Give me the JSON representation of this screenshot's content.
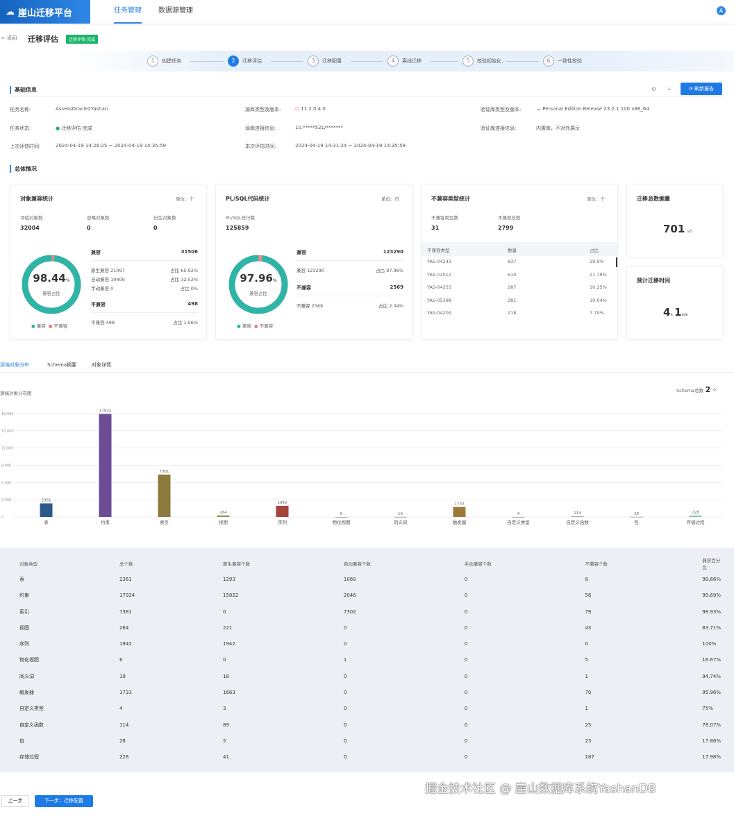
{
  "app": {
    "title": "崖山迁移平台",
    "nav": [
      "任务管理",
      "数据源管理"
    ],
    "avatar": "A"
  },
  "header": {
    "back": "返回",
    "title": "迁移评估",
    "badge": "迁移评估-完成"
  },
  "steps": [
    {
      "n": "1",
      "label": "创建任务"
    },
    {
      "n": "2",
      "label": "迁移评估"
    },
    {
      "n": "3",
      "label": "迁移配置"
    },
    {
      "n": "4",
      "label": "离线迁移"
    },
    {
      "n": "5",
      "label": "校验初始化"
    },
    {
      "n": "6",
      "label": "一致性校验"
    }
  ],
  "basic": {
    "title": "基础信息",
    "refresh": "刷新报告",
    "fields": [
      {
        "label": "任务名称:",
        "value": "AssessOracle2Yashan"
      },
      {
        "label": "源库类型及版本:",
        "value": "11.2.0.4.0"
      },
      {
        "label": "验证库类型及版本:",
        "value": "Personal Edition Release 23.2.1.100 x86_64"
      },
      {
        "label": "任务状态:",
        "value": "迁移评估-完成"
      },
      {
        "label": "源库连接信息:",
        "value": "10.*****521/*******"
      },
      {
        "label": "验证库连接信息:",
        "value": "内置库，不对外展示"
      },
      {
        "label": "上次评估时间:",
        "value": "2024-04-19 14:26:25 ~ 2024-04-19 14:35:59"
      },
      {
        "label": "本次评估时间:",
        "value": "2024-04-19 14:31:34 ~ 2024-04-19 14:35:59"
      }
    ]
  },
  "overview": {
    "title": "总体情况",
    "obj": {
      "title": "对象兼容统计",
      "unit": "单位：个",
      "stats": [
        {
          "l": "评估对象数",
          "v": "32004"
        },
        {
          "l": "忽略对象数",
          "v": "0"
        },
        {
          "l": "衍生对象数",
          "v": "0"
        }
      ],
      "pct": "98.44",
      "pct_unit": "%",
      "pct_label": "兼容占比",
      "compat_fraction": 0.9844,
      "compat": {
        "l": "兼容",
        "v": "31506"
      },
      "rows": [
        {
          "l": "原生兼容 21097",
          "p": "占比 65.92%"
        },
        {
          "l": "自动兼容 10409",
          "p": "占比 32.52%"
        },
        {
          "l": "手动兼容 0",
          "p": "占比 0%"
        }
      ],
      "incompat": {
        "l": "不兼容",
        "v": "498"
      },
      "irows": [
        {
          "l": "不兼容 498",
          "p": "占比 1.56%"
        }
      ],
      "legend": [
        "兼容",
        "不兼容"
      ]
    },
    "plsql": {
      "title": "PL/SQL代码统计",
      "unit": "单位：行",
      "stat": {
        "l": "PL/SQL总行数",
        "v": "125859"
      },
      "pct": "97.96",
      "pct_unit": "%",
      "pct_label": "兼容占比",
      "compat_fraction": 0.9796,
      "compat": {
        "l": "兼容",
        "v": "123290"
      },
      "rows": [
        {
          "l": "兼容 123290",
          "p": "占比 97.96%"
        }
      ],
      "incompat": {
        "l": "不兼容",
        "v": "2569"
      },
      "irows": [
        {
          "l": "不兼容 2569",
          "p": "占比 2.04%"
        }
      ],
      "legend": [
        "兼容",
        "不兼容"
      ]
    },
    "incompat": {
      "title": "不兼容类型统计",
      "unit": "单位：个",
      "stats": [
        {
          "l": "不兼容类型数",
          "v": "31"
        },
        {
          "l": "不兼容总数",
          "v": "2799"
        }
      ],
      "headers": [
        "不兼容类型",
        "数量",
        "占比"
      ],
      "rows": [
        [
          "YAS-04243",
          "837",
          "29.9%"
        ],
        [
          "YAS-02012",
          "610",
          "21.79%"
        ],
        [
          "YAS-04253",
          "287",
          "10.25%"
        ],
        [
          "YAS-05398",
          "281",
          "10.04%"
        ],
        [
          "YAS-04209",
          "218",
          "7.79%"
        ]
      ]
    },
    "size": {
      "title": "迁移总数据量",
      "value": "701",
      "unit": "GB"
    },
    "time": {
      "title": "预计迁移时间",
      "h": "4",
      "hu": "h",
      "m": "1",
      "mu": "min"
    }
  },
  "tabs": [
    "源端对象分布",
    "Schema摘要",
    "对象详情"
  ],
  "chart_title": "源端对象分布图",
  "schema_label": "Schema总数",
  "schema_count": "2",
  "schema_unit": "个",
  "chart_data": {
    "type": "bar",
    "title": "源端对象分布图",
    "categories": [
      "表",
      "约束",
      "索引",
      "视图",
      "序列",
      "物化视图",
      "同义词",
      "触发器",
      "自定义类型",
      "自定义函数",
      "包",
      "存储过程"
    ],
    "values": [
      2361,
      17924,
      7381,
      264,
      1942,
      6,
      19,
      1733,
      4,
      114,
      28,
      228
    ],
    "colors": [
      "#2c5a8c",
      "#6b4c95",
      "#8c7a3c",
      "#8e9a4a",
      "#a5443a",
      "#9aa",
      "#9aa",
      "#9c7b3a",
      "#9aa",
      "#9aa",
      "#9aa",
      "#7cc7b3"
    ],
    "yticks": [
      "0",
      "3,000",
      "6,000",
      "9,000",
      "12,000",
      "15,000",
      "18,000"
    ],
    "ylim": [
      0,
      18000
    ],
    "grid": true
  },
  "table": {
    "headers": [
      "对象类型",
      "总个数",
      "原生兼容个数",
      "自动兼容个数",
      "手动兼容个数",
      "不兼容个数",
      "兼容百分比"
    ],
    "rows": [
      [
        "表",
        "2361",
        "1293",
        "1060",
        "0",
        "8",
        "99.66%"
      ],
      [
        "约束",
        "17924",
        "15822",
        "2046",
        "0",
        "56",
        "99.69%"
      ],
      [
        "索引",
        "7381",
        "0",
        "7302",
        "0",
        "79",
        "98.93%"
      ],
      [
        "视图",
        "264",
        "221",
        "0",
        "0",
        "43",
        "83.71%"
      ],
      [
        "序列",
        "1942",
        "1942",
        "0",
        "0",
        "0",
        "100%"
      ],
      [
        "物化视图",
        "6",
        "0",
        "1",
        "0",
        "5",
        "16.67%"
      ],
      [
        "同义词",
        "19",
        "18",
        "0",
        "0",
        "1",
        "94.74%"
      ],
      [
        "触发器",
        "1733",
        "1663",
        "0",
        "0",
        "70",
        "95.96%"
      ],
      [
        "自定义类型",
        "4",
        "3",
        "0",
        "0",
        "1",
        "75%"
      ],
      [
        "自定义函数",
        "114",
        "89",
        "0",
        "0",
        "25",
        "78.07%"
      ],
      [
        "包",
        "28",
        "5",
        "0",
        "0",
        "23",
        "17.86%"
      ],
      [
        "存储过程",
        "228",
        "41",
        "0",
        "0",
        "187",
        "17.98%"
      ]
    ]
  },
  "footer": {
    "prev": "上一步",
    "next": "下一步：迁移配置",
    "watermark": "掘金技术社区 @ 崖山数据库系统YashanDB"
  }
}
